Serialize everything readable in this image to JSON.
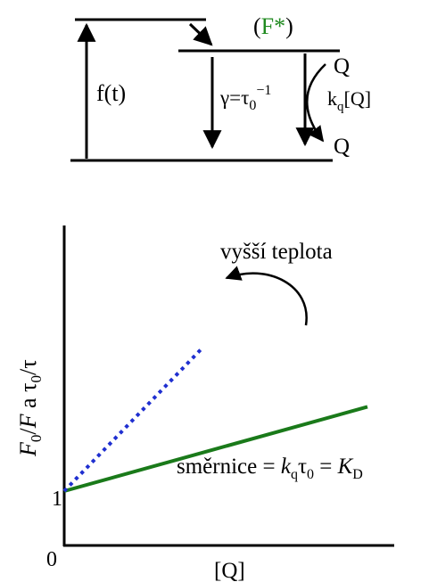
{
  "energy_diagram": {
    "excited_state": {
      "paren_open": "(",
      "label": "F*",
      "paren_close": ")",
      "color": "#1f8a1f"
    },
    "excitation_label": "f(t)",
    "decay_label": {
      "prefix": "γ=τ",
      "sub": "0",
      "sup": "−1"
    },
    "quenching_label": {
      "k": "k",
      "sub": "q",
      "suffix": "[Q]"
    },
    "quencher_top": "Q",
    "quencher_bottom": "Q"
  },
  "chart_data": {
    "type": "line",
    "ylabel": {
      "F": "F",
      "sub0": "0",
      "mid": "/",
      "F2": "F",
      "a": " a τ",
      "sub0b": "0",
      "end": "/τ"
    },
    "xlabel": "[Q]",
    "ticks_y": [
      "1",
      "0"
    ],
    "intercept": 1,
    "series": [
      {
        "style": "solid",
        "color": "#1a7a1a",
        "x": [
          0,
          1
        ],
        "y": [
          1,
          2.55
        ]
      },
      {
        "style": "dotted",
        "color": "#1f2fd0",
        "x": [
          0,
          0.45
        ],
        "y": [
          1,
          3.6
        ]
      }
    ],
    "annotation_temperature": "vyšší teplota",
    "slope_annotation": {
      "prefix": "směrnice = ",
      "k": "k",
      "q": "q",
      "tau": "τ",
      "zero": "0",
      "eq": " = ",
      "K": "K",
      "D": "D"
    }
  }
}
